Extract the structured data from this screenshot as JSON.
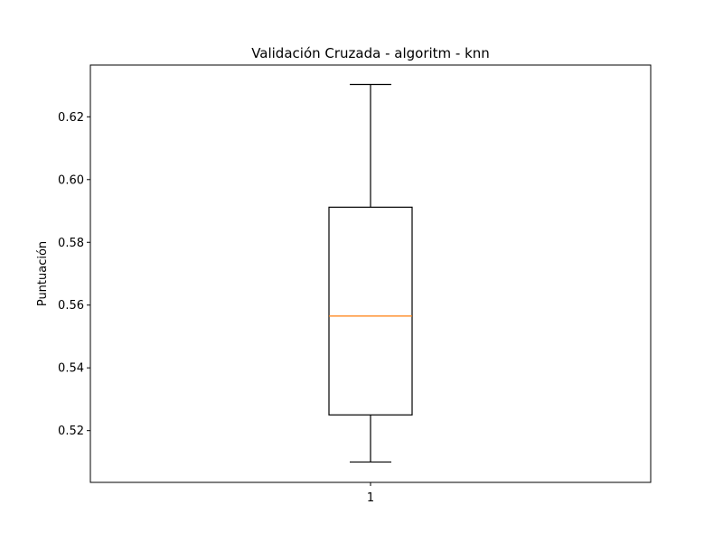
{
  "chart_data": {
    "type": "box",
    "title": "Validación Cruzada - algoritm - knn",
    "xlabel": "",
    "ylabel": "Puntuación",
    "categories": [
      "1"
    ],
    "boxes": [
      {
        "category": "1",
        "whisker_low": 0.51,
        "q1": 0.525,
        "median": 0.5565,
        "q3": 0.5912,
        "whisker_high": 0.6303
      }
    ],
    "ylim": [
      0.5035,
      0.6365
    ],
    "yticks": [
      0.52,
      0.54,
      0.56,
      0.58,
      0.6,
      0.62
    ],
    "ytick_labels": [
      "0.52",
      "0.54",
      "0.56",
      "0.58",
      "0.60",
      "0.62"
    ],
    "grid": false,
    "colors": {
      "box": "#000000",
      "median": "#ff7f0e"
    }
  }
}
